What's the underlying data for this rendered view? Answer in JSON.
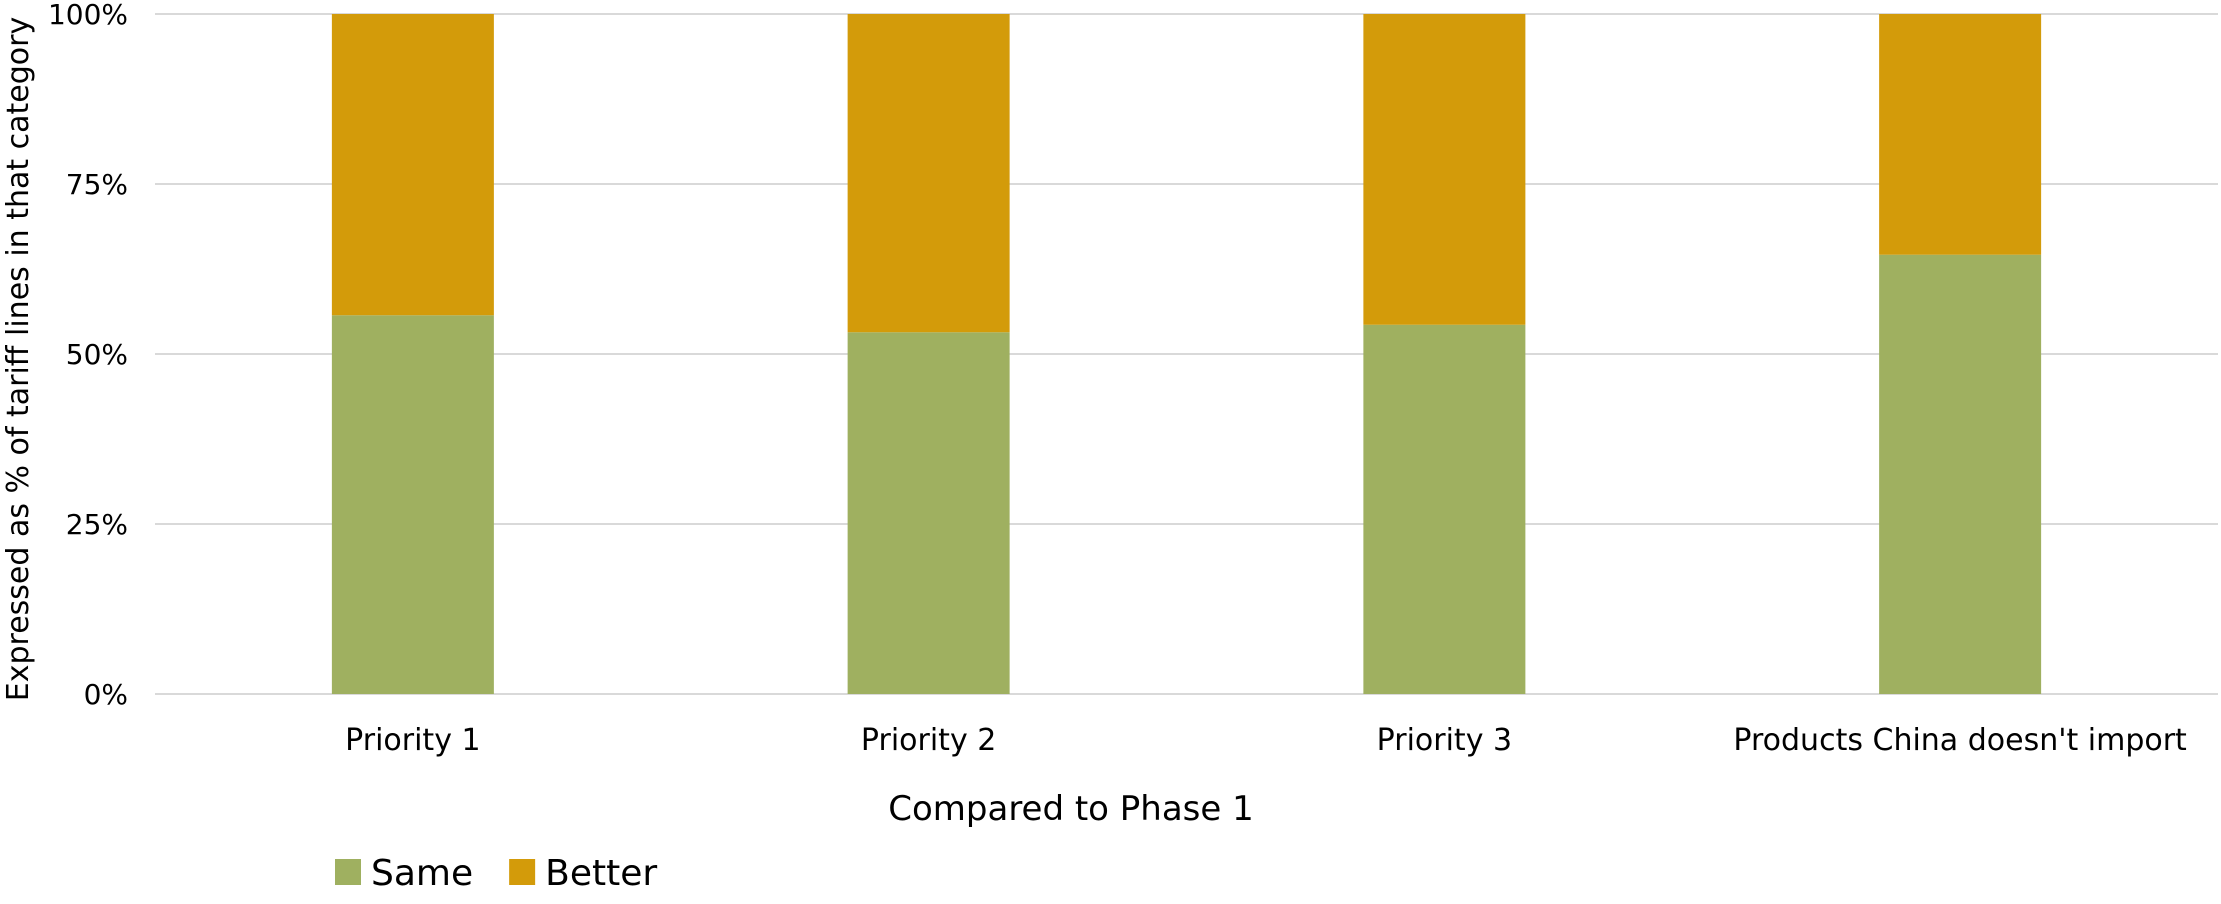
{
  "chart_data": {
    "type": "bar",
    "stacked": true,
    "percent": true,
    "categories": [
      "Priority 1",
      "Priority 2",
      "Priority 3",
      "Products China doesn't import"
    ],
    "series": [
      {
        "name": "Same",
        "color": "#9FB060",
        "values": [
          55.7,
          53.2,
          54.3,
          64.6
        ]
      },
      {
        "name": "Better",
        "color": "#D39B0A",
        "values": [
          44.3,
          46.8,
          45.7,
          35.4
        ]
      }
    ],
    "xlabel": "Compared to Phase 1",
    "ylabel": "Expressed as % of tariff lines in that category",
    "ylim": [
      0,
      100
    ],
    "yticks": [
      "0%",
      "25%",
      "50%",
      "75%",
      "100%"
    ],
    "grid": true,
    "legend_position": "bottom-left",
    "gridline_color": "#D9D9D9"
  }
}
